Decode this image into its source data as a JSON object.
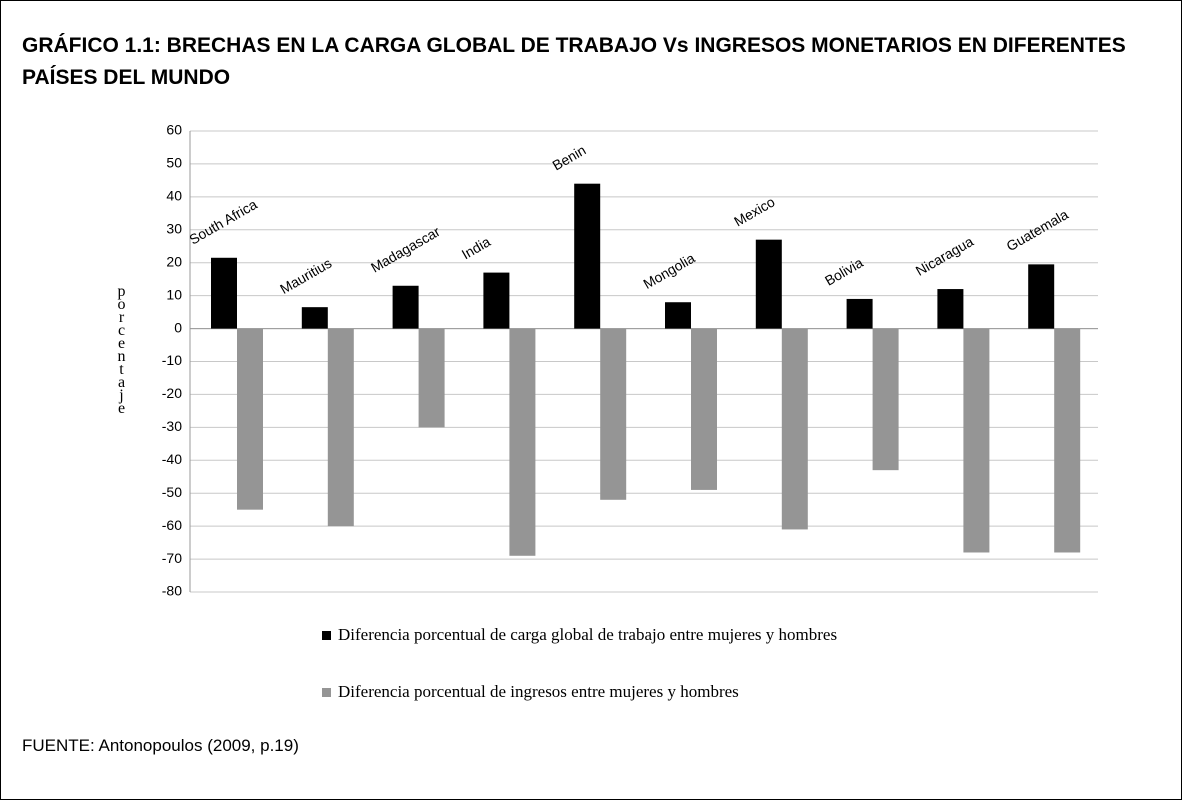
{
  "chart_data": {
    "type": "bar",
    "title": "GRÁFICO 1.1: BRECHAS EN LA CARGA GLOBAL DE TRABAJO Vs INGRESOS MONETARIOS EN DIFERENTES PAÍSES DEL MUNDO",
    "y_label": "porcentaje",
    "source": "FUENTE: Antonopoulos (2009, p.19)",
    "categories": [
      "South Africa",
      "Mauritius",
      "Madagascar",
      "India",
      "Benin",
      "Mongolia",
      "Mexico",
      "Bolivia",
      "Nicaragua",
      "Guatemala"
    ],
    "series": [
      {
        "name": "Diferencia porcentual de carga global de trabajo entre mujeres y hombres",
        "color": "#000000",
        "values": [
          21.5,
          6.5,
          13,
          17,
          44,
          8,
          27,
          9,
          12,
          19.5
        ]
      },
      {
        "name": "Diferencia porcentual de ingresos entre mujeres y hombres",
        "color": "#959595",
        "values": [
          -55,
          -60,
          -30,
          -69,
          -52,
          -49,
          -61,
          -43,
          -68,
          -68
        ]
      }
    ],
    "ylim": [
      -80,
      60
    ],
    "yticks": [
      -80,
      -70,
      -60,
      -50,
      -40,
      -30,
      -20,
      -10,
      0,
      10,
      20,
      30,
      40,
      50,
      60
    ],
    "grid": true,
    "legend": "bottom"
  }
}
